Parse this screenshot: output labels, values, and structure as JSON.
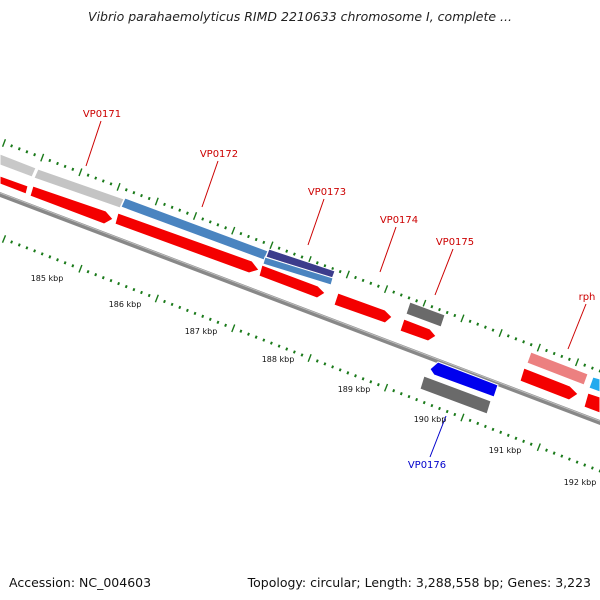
{
  "title": "Vibrio parahaemolyticus RIMD 2210633 chromosome I, complete ...",
  "footer": {
    "accession": "Accession: NC_004603",
    "summary": "Topology: circular; Length: 3,288,558 bp; Genes: 3,223"
  },
  "colors": {
    "forward_cds": "#f40000",
    "gene_steelblue": "#4a84c0",
    "gene_navy": "#3c3c8c",
    "gene_grey": "#6a6a6a",
    "gene_lightgrey": "#c4c4c4",
    "gene_pink": "#ec8080",
    "gene_cyan": "#22aaee",
    "reverse_gene": "#0000ee",
    "label_red": "#cc0000",
    "label_blue": "#0000cc",
    "tick_green": "#1a7a1a",
    "backbone": "#888888"
  },
  "scale_labels": [
    "185 kbp",
    "186 kbp",
    "187 kbp",
    "188 kbp",
    "189 kbp",
    "190 kbp",
    "191 kbp",
    "192 kbp"
  ],
  "gene_labels": [
    {
      "name": "VP0171",
      "color": "red"
    },
    {
      "name": "VP0172",
      "color": "red"
    },
    {
      "name": "VP0173",
      "color": "red"
    },
    {
      "name": "VP0174",
      "color": "red"
    },
    {
      "name": "VP0175",
      "color": "red"
    },
    {
      "name": "rph",
      "color": "red"
    },
    {
      "name": "VP0176",
      "color": "blue"
    }
  ]
}
